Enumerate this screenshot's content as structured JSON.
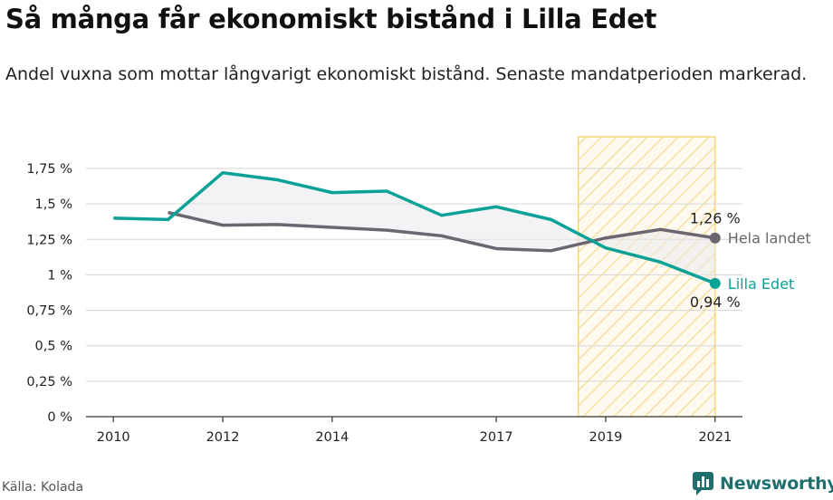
{
  "title": "Så många får ekonomiskt bistånd i Lilla Edet",
  "subtitle": "Andel vuxna som mottar långvarigt ekonomiskt bistånd. Senaste mandatperioden markerad.",
  "source": "Källa: Kolada",
  "brand": "Newsworthy",
  "colors": {
    "lilla_edet": "#0aa196",
    "hela_landet": "#6b6670",
    "highlight_stroke": "#f5cf5c",
    "highlight_hatch": "#f7dc8e",
    "grid": "#d6d6d6",
    "axis": "#333333",
    "brand": "#1f6f6f"
  },
  "chart_data": {
    "type": "line",
    "xlim": [
      2009.5,
      2021.5
    ],
    "ylim": [
      0,
      1.75
    ],
    "y_ticks": [
      0,
      0.25,
      0.5,
      0.75,
      1,
      1.25,
      1.5,
      1.75
    ],
    "y_tick_labels": [
      "0 %",
      "0,25 %",
      "0,5 %",
      "0,75 %",
      "1 %",
      "1,25 %",
      "1,5 %",
      "1,75 %"
    ],
    "x_ticks": [
      2010,
      2012,
      2014,
      2017,
      2019,
      2021
    ],
    "x_tick_labels": [
      "2010",
      "2012",
      "2014",
      "2017",
      "2019",
      "2021"
    ],
    "highlight_range": [
      2018.5,
      2021
    ],
    "grid": true,
    "series": [
      {
        "name": "Lilla Edet",
        "color_key": "lilla_edet",
        "x": [
          2010,
          2011,
          2012,
          2013,
          2014,
          2015,
          2016,
          2017,
          2018,
          2019,
          2020,
          2021
        ],
        "values": [
          1.4,
          1.39,
          1.72,
          1.67,
          1.58,
          1.59,
          1.42,
          1.48,
          1.39,
          1.19,
          1.09,
          0.94
        ],
        "end_label": "0,94 %",
        "end_label_position": "below"
      },
      {
        "name": "Hela landet",
        "color_key": "hela_landet",
        "x": [
          2011,
          2012,
          2013,
          2014,
          2015,
          2016,
          2017,
          2018,
          2019,
          2020,
          2021
        ],
        "values": [
          1.44,
          1.35,
          1.355,
          1.335,
          1.315,
          1.275,
          1.185,
          1.17,
          1.26,
          1.32,
          1.26
        ],
        "end_label": "1,26 %",
        "end_label_position": "above"
      }
    ]
  }
}
